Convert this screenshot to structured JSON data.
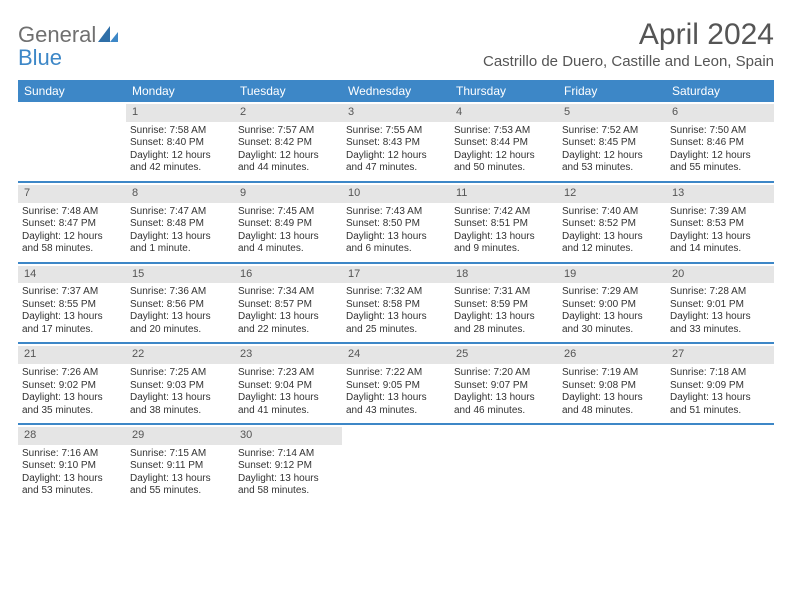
{
  "logo": {
    "word1": "General",
    "word2": "Blue"
  },
  "title": "April 2024",
  "location": "Castrillo de Duero, Castille and Leon, Spain",
  "colors": {
    "header_bg": "#3d87c7",
    "header_text": "#ffffff",
    "daynum_bg": "#e5e5e5",
    "week_divider": "#3d87c7",
    "body_text": "#333333",
    "title_text": "#555555",
    "logo_gray": "#707070",
    "logo_blue": "#3d87c7",
    "page_bg": "#ffffff"
  },
  "fonts": {
    "title_size_pt": 22,
    "location_size_pt": 11,
    "header_size_pt": 9,
    "cell_size_pt": 7.5
  },
  "day_labels": [
    "Sunday",
    "Monday",
    "Tuesday",
    "Wednesday",
    "Thursday",
    "Friday",
    "Saturday"
  ],
  "weeks": [
    [
      {
        "day": null
      },
      {
        "day": "1",
        "sunrise": "Sunrise: 7:58 AM",
        "sunset": "Sunset: 8:40 PM",
        "daylight": "Daylight: 12 hours and 42 minutes."
      },
      {
        "day": "2",
        "sunrise": "Sunrise: 7:57 AM",
        "sunset": "Sunset: 8:42 PM",
        "daylight": "Daylight: 12 hours and 44 minutes."
      },
      {
        "day": "3",
        "sunrise": "Sunrise: 7:55 AM",
        "sunset": "Sunset: 8:43 PM",
        "daylight": "Daylight: 12 hours and 47 minutes."
      },
      {
        "day": "4",
        "sunrise": "Sunrise: 7:53 AM",
        "sunset": "Sunset: 8:44 PM",
        "daylight": "Daylight: 12 hours and 50 minutes."
      },
      {
        "day": "5",
        "sunrise": "Sunrise: 7:52 AM",
        "sunset": "Sunset: 8:45 PM",
        "daylight": "Daylight: 12 hours and 53 minutes."
      },
      {
        "day": "6",
        "sunrise": "Sunrise: 7:50 AM",
        "sunset": "Sunset: 8:46 PM",
        "daylight": "Daylight: 12 hours and 55 minutes."
      }
    ],
    [
      {
        "day": "7",
        "sunrise": "Sunrise: 7:48 AM",
        "sunset": "Sunset: 8:47 PM",
        "daylight": "Daylight: 12 hours and 58 minutes."
      },
      {
        "day": "8",
        "sunrise": "Sunrise: 7:47 AM",
        "sunset": "Sunset: 8:48 PM",
        "daylight": "Daylight: 13 hours and 1 minute."
      },
      {
        "day": "9",
        "sunrise": "Sunrise: 7:45 AM",
        "sunset": "Sunset: 8:49 PM",
        "daylight": "Daylight: 13 hours and 4 minutes."
      },
      {
        "day": "10",
        "sunrise": "Sunrise: 7:43 AM",
        "sunset": "Sunset: 8:50 PM",
        "daylight": "Daylight: 13 hours and 6 minutes."
      },
      {
        "day": "11",
        "sunrise": "Sunrise: 7:42 AM",
        "sunset": "Sunset: 8:51 PM",
        "daylight": "Daylight: 13 hours and 9 minutes."
      },
      {
        "day": "12",
        "sunrise": "Sunrise: 7:40 AM",
        "sunset": "Sunset: 8:52 PM",
        "daylight": "Daylight: 13 hours and 12 minutes."
      },
      {
        "day": "13",
        "sunrise": "Sunrise: 7:39 AM",
        "sunset": "Sunset: 8:53 PM",
        "daylight": "Daylight: 13 hours and 14 minutes."
      }
    ],
    [
      {
        "day": "14",
        "sunrise": "Sunrise: 7:37 AM",
        "sunset": "Sunset: 8:55 PM",
        "daylight": "Daylight: 13 hours and 17 minutes."
      },
      {
        "day": "15",
        "sunrise": "Sunrise: 7:36 AM",
        "sunset": "Sunset: 8:56 PM",
        "daylight": "Daylight: 13 hours and 20 minutes."
      },
      {
        "day": "16",
        "sunrise": "Sunrise: 7:34 AM",
        "sunset": "Sunset: 8:57 PM",
        "daylight": "Daylight: 13 hours and 22 minutes."
      },
      {
        "day": "17",
        "sunrise": "Sunrise: 7:32 AM",
        "sunset": "Sunset: 8:58 PM",
        "daylight": "Daylight: 13 hours and 25 minutes."
      },
      {
        "day": "18",
        "sunrise": "Sunrise: 7:31 AM",
        "sunset": "Sunset: 8:59 PM",
        "daylight": "Daylight: 13 hours and 28 minutes."
      },
      {
        "day": "19",
        "sunrise": "Sunrise: 7:29 AM",
        "sunset": "Sunset: 9:00 PM",
        "daylight": "Daylight: 13 hours and 30 minutes."
      },
      {
        "day": "20",
        "sunrise": "Sunrise: 7:28 AM",
        "sunset": "Sunset: 9:01 PM",
        "daylight": "Daylight: 13 hours and 33 minutes."
      }
    ],
    [
      {
        "day": "21",
        "sunrise": "Sunrise: 7:26 AM",
        "sunset": "Sunset: 9:02 PM",
        "daylight": "Daylight: 13 hours and 35 minutes."
      },
      {
        "day": "22",
        "sunrise": "Sunrise: 7:25 AM",
        "sunset": "Sunset: 9:03 PM",
        "daylight": "Daylight: 13 hours and 38 minutes."
      },
      {
        "day": "23",
        "sunrise": "Sunrise: 7:23 AM",
        "sunset": "Sunset: 9:04 PM",
        "daylight": "Daylight: 13 hours and 41 minutes."
      },
      {
        "day": "24",
        "sunrise": "Sunrise: 7:22 AM",
        "sunset": "Sunset: 9:05 PM",
        "daylight": "Daylight: 13 hours and 43 minutes."
      },
      {
        "day": "25",
        "sunrise": "Sunrise: 7:20 AM",
        "sunset": "Sunset: 9:07 PM",
        "daylight": "Daylight: 13 hours and 46 minutes."
      },
      {
        "day": "26",
        "sunrise": "Sunrise: 7:19 AM",
        "sunset": "Sunset: 9:08 PM",
        "daylight": "Daylight: 13 hours and 48 minutes."
      },
      {
        "day": "27",
        "sunrise": "Sunrise: 7:18 AM",
        "sunset": "Sunset: 9:09 PM",
        "daylight": "Daylight: 13 hours and 51 minutes."
      }
    ],
    [
      {
        "day": "28",
        "sunrise": "Sunrise: 7:16 AM",
        "sunset": "Sunset: 9:10 PM",
        "daylight": "Daylight: 13 hours and 53 minutes."
      },
      {
        "day": "29",
        "sunrise": "Sunrise: 7:15 AM",
        "sunset": "Sunset: 9:11 PM",
        "daylight": "Daylight: 13 hours and 55 minutes."
      },
      {
        "day": "30",
        "sunrise": "Sunrise: 7:14 AM",
        "sunset": "Sunset: 9:12 PM",
        "daylight": "Daylight: 13 hours and 58 minutes."
      },
      {
        "day": null
      },
      {
        "day": null
      },
      {
        "day": null
      },
      {
        "day": null
      }
    ]
  ]
}
